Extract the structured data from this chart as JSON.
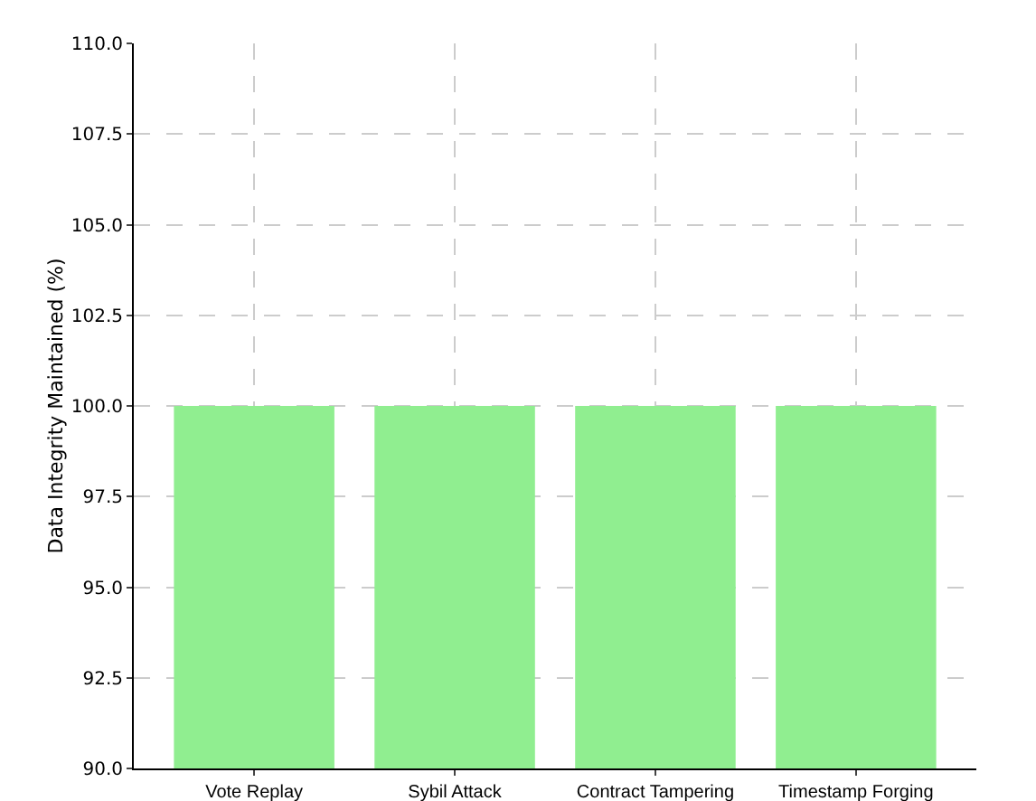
{
  "chart_data": {
    "type": "bar",
    "ylabel": "Data Integrity Maintained (%)",
    "categories": [
      "Vote Replay",
      "Sybil Attack",
      "Contract Tampering",
      "Timestamp Forging"
    ],
    "values": [
      100,
      100,
      100,
      100
    ],
    "color": "#90ee90",
    "ylim": [
      90,
      110
    ],
    "yticks": [
      {
        "value": 90,
        "label": "90.0"
      },
      {
        "value": 92.5,
        "label": "92.5"
      },
      {
        "value": 95,
        "label": "95.0"
      },
      {
        "value": 97.5,
        "label": "97.5"
      },
      {
        "value": 100,
        "label": "100.0"
      },
      {
        "value": 102.5,
        "label": "102.5"
      },
      {
        "value": 105,
        "label": "105.0"
      },
      {
        "value": 107.5,
        "label": "107.5"
      },
      {
        "value": 110,
        "label": "110.0"
      }
    ],
    "grid": true
  }
}
